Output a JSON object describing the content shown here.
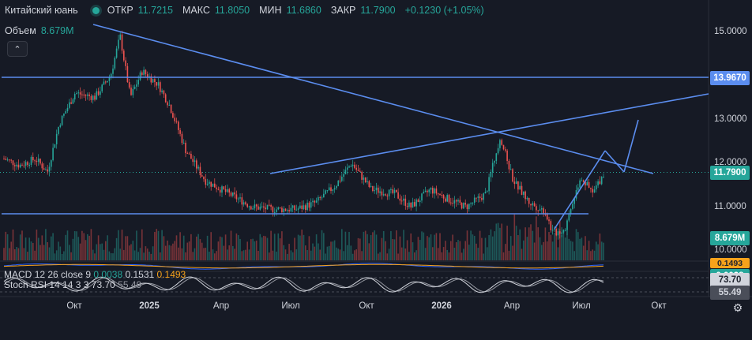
{
  "instrument": {
    "name": "Китайский юань"
  },
  "ohlc": {
    "open_label": "ОТКР",
    "open": "11.7215",
    "high_label": "МАКС",
    "high": "11.8050",
    "low_label": "МИН",
    "low": "11.6860",
    "close_label": "ЗАКР",
    "close": "11.7900",
    "change": "+0.1230 (+1.05%)"
  },
  "volume": {
    "label": "Объем",
    "value": "8.679M"
  },
  "collapse_button": {
    "label": "⌃"
  },
  "macd": {
    "label": "MACD",
    "params": "12 26 close 9",
    "hist": "0.0038",
    "macd": "0.1531",
    "signal": "0.1493"
  },
  "stoch": {
    "label": "Stoch RSI",
    "params": "14 14 3 3",
    "k": "73.70",
    "d": "55.49"
  },
  "price_axis": {
    "ticks": [
      "15.0000",
      "13.0000",
      "12.0000",
      "11.0000",
      "10.0000"
    ],
    "tags": {
      "hline": "13.9670",
      "last_price": "11.7900",
      "volume": "8.679M",
      "macd_signal": "0.1493",
      "macd_hist": "0.0038",
      "stoch_k": "73.70",
      "stoch_d": "55.49"
    }
  },
  "time_axis": [
    "Окт",
    "2025",
    "Апр",
    "Июл",
    "Окт",
    "2026",
    "Апр",
    "Июл",
    "Окт"
  ],
  "colors": {
    "up": "#26a69a",
    "down": "#ef5350",
    "drawing": "#5b8def",
    "macd_line": "#2962ff",
    "signal_line": "#f7a21b",
    "stoch_k": "#d1d4dc",
    "stoch_d": "#9598a1"
  },
  "icons": {
    "settings": "gear-icon",
    "status": "market-open-dot-icon"
  }
}
